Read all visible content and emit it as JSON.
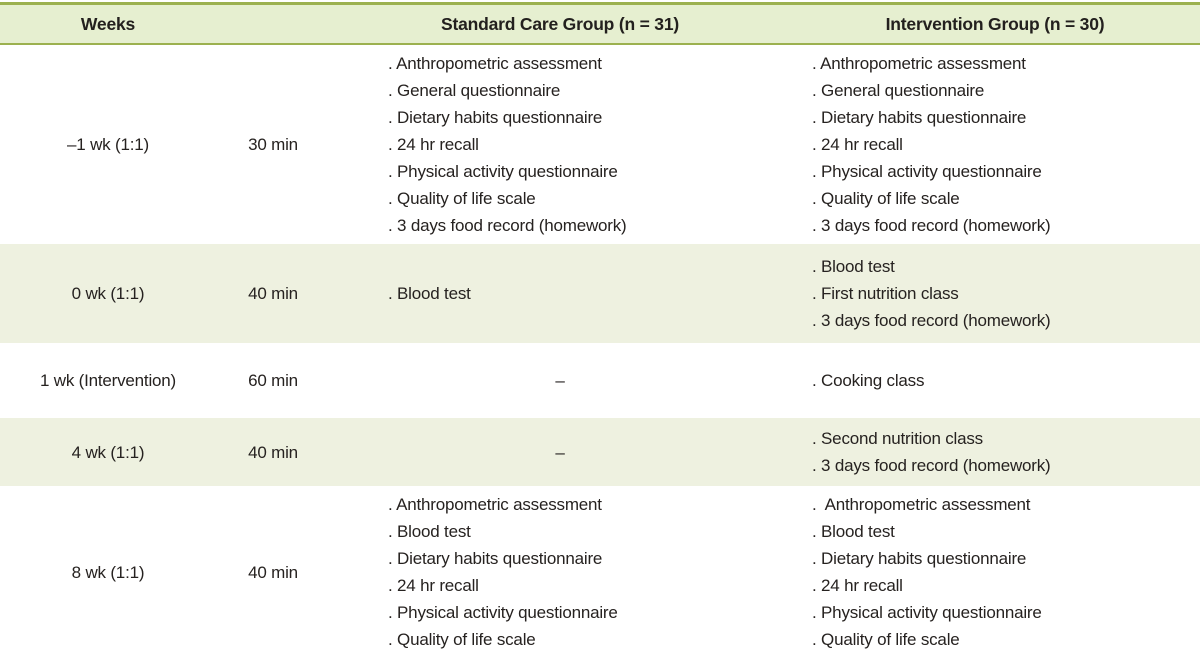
{
  "colors": {
    "header_background": "#e6efd0",
    "zebra_row_background": "#eef1e0",
    "header_border": "#9cb14f",
    "bottom_border": "#b9cc85",
    "text": "#262220"
  },
  "table": {
    "headers": {
      "weeks": "Weeks",
      "duration": "",
      "standard": "Standard Care Group (n = 31)",
      "intervention": "Intervention Group (n = 30)"
    },
    "rows": [
      {
        "week": "–1 wk (1:1)",
        "duration": "30 min",
        "standard": [
          ". Anthropometric assessment",
          ". General questionnaire",
          ". Dietary habits questionnaire",
          ". 24 hr recall",
          ". Physical activity questionnaire",
          ". Quality of life scale",
          ". 3 days food record (homework)"
        ],
        "intervention": [
          ". Anthropometric assessment",
          ". General questionnaire",
          ". Dietary habits questionnaire",
          ". 24 hr recall",
          ". Physical activity questionnaire",
          ". Quality of life scale",
          ". 3 days food record (homework)"
        ]
      },
      {
        "week": "0 wk (1:1)",
        "duration": "40 min",
        "standard": [
          ". Blood test"
        ],
        "intervention": [
          ". Blood test",
          ". First nutrition class",
          ". 3 days food record (homework)"
        ]
      },
      {
        "week": "1 wk (Intervention)",
        "duration": "60 min",
        "standard_dash": "–",
        "intervention": [
          ". Cooking class"
        ]
      },
      {
        "week": "4 wk (1:1)",
        "duration": "40 min",
        "standard_dash": "–",
        "intervention": [
          ". Second nutrition class",
          ". 3 days food record (homework)"
        ]
      },
      {
        "week": "8 wk (1:1)",
        "duration": "40 min",
        "standard": [
          ". Anthropometric assessment",
          ". Blood test",
          ". Dietary habits questionnaire",
          ". 24 hr recall",
          ". Physical activity questionnaire",
          ". Quality of life scale"
        ],
        "intervention": [
          ".  Anthropometric assessment",
          ". Blood test",
          ". Dietary habits questionnaire",
          ". 24 hr recall",
          ". Physical activity questionnaire",
          ". Quality of life scale"
        ]
      }
    ]
  }
}
